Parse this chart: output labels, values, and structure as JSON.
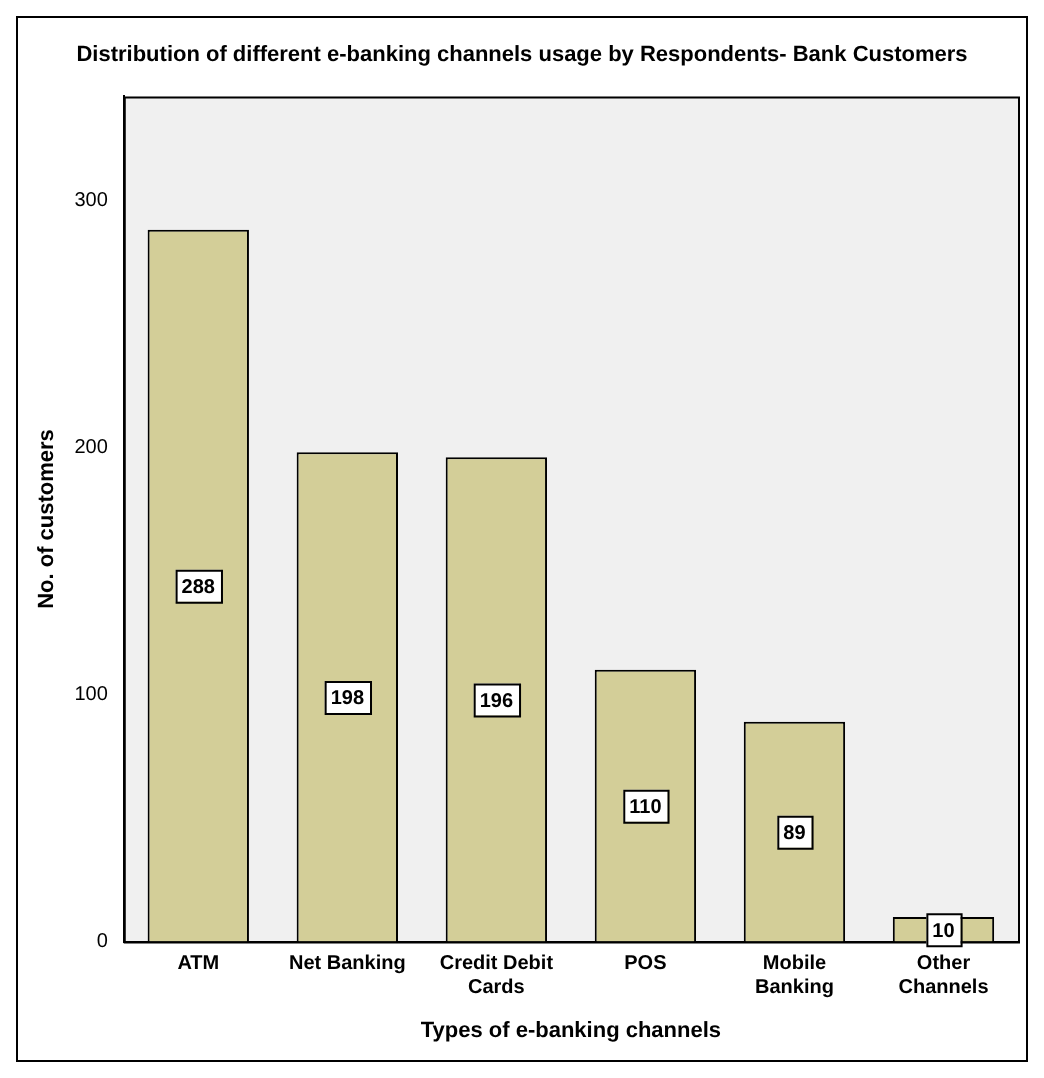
{
  "chart_data": {
    "type": "bar",
    "title": "Distribution of different e-banking channels usage by Respondents- Bank Customers",
    "xlabel": "Types of e-banking channels",
    "ylabel": "No. of customers",
    "categories": [
      "ATM",
      "Net Banking",
      "Credit Debit Cards",
      "POS",
      "Mobile Banking",
      "Other Channels"
    ],
    "values": [
      288,
      198,
      196,
      110,
      89,
      10
    ],
    "color": "#d3ce98",
    "ylim": [
      0,
      342
    ],
    "yticks": [
      0,
      100,
      200,
      300
    ],
    "grid": false,
    "legend": false,
    "data_labels": true
  }
}
